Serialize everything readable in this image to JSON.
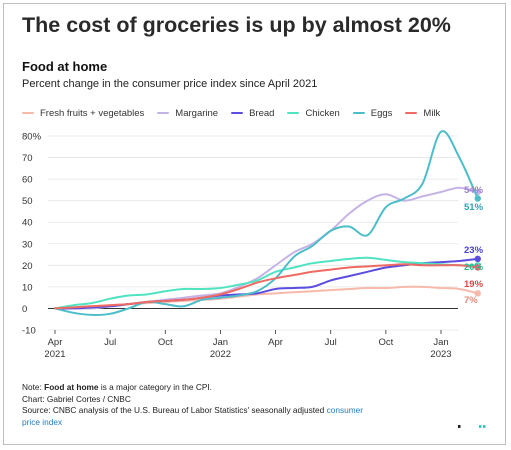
{
  "chart_data": {
    "type": "line",
    "title": "The cost of groceries is up by almost 20%",
    "subtitle": "Food at home",
    "description": "Percent change in the consumer price index since April 2021",
    "ylim": [
      -10,
      80
    ],
    "yticks": [
      -10,
      0,
      10,
      20,
      30,
      40,
      50,
      60,
      70,
      80
    ],
    "ytick_labels": [
      "-10",
      "0",
      "10",
      "20",
      "30",
      "40",
      "50",
      "60",
      "70",
      "80%"
    ],
    "xticks": [
      {
        "month": 0,
        "label": "Apr",
        "year": "2021"
      },
      {
        "month": 3,
        "label": "Jul",
        "year": ""
      },
      {
        "month": 6,
        "label": "Oct",
        "year": ""
      },
      {
        "month": 9,
        "label": "Jan",
        "year": "2022"
      },
      {
        "month": 12,
        "label": "Apr",
        "year": ""
      },
      {
        "month": 15,
        "label": "Jul",
        "year": ""
      },
      {
        "month": 18,
        "label": "Oct",
        "year": ""
      },
      {
        "month": 21,
        "label": "Jan",
        "year": "2023"
      }
    ],
    "x_months": [
      "Apr 2021",
      "May 2021",
      "Jun 2021",
      "Jul 2021",
      "Aug 2021",
      "Sep 2021",
      "Oct 2021",
      "Nov 2021",
      "Dec 2021",
      "Jan 2022",
      "Feb 2022",
      "Mar 2022",
      "Apr 2022",
      "May 2022",
      "Jun 2022",
      "Jul 2022",
      "Aug 2022",
      "Sep 2022",
      "Oct 2022",
      "Nov 2022",
      "Dec 2022",
      "Jan 2023",
      "Feb 2023",
      "Mar 2023"
    ],
    "series": [
      {
        "name": "Fresh fruits + vegetables",
        "color": "#f7b9aa",
        "end_label": "7%",
        "values": [
          0,
          0.5,
          1,
          1.5,
          2,
          2.5,
          3,
          3.5,
          4,
          4.5,
          5.5,
          6.5,
          7,
          7.5,
          8,
          8.5,
          9,
          9.5,
          9.5,
          10,
          10,
          9.5,
          9,
          7
        ]
      },
      {
        "name": "Margarine",
        "color": "#c5b3e6",
        "end_label": "54%",
        "values": [
          0,
          0,
          0,
          1,
          2,
          3,
          4,
          5,
          6,
          7,
          10,
          14,
          20,
          26,
          30,
          36,
          44,
          50,
          53,
          50,
          52,
          54,
          56,
          54
        ]
      },
      {
        "name": "Bread",
        "color": "#5b4de0",
        "end_label": "23%",
        "values": [
          0,
          0,
          0.5,
          1,
          2,
          3,
          3.5,
          4,
          5,
          6,
          6.5,
          7,
          9,
          9.5,
          10,
          13,
          15,
          17,
          19,
          20,
          21,
          21.5,
          22,
          23
        ]
      },
      {
        "name": "Chicken",
        "color": "#4fe3c2",
        "end_label": "20%",
        "values": [
          0,
          1.5,
          2.5,
          4.5,
          6,
          6.5,
          8,
          9,
          9,
          9.5,
          11,
          13,
          17,
          19,
          21,
          22,
          23,
          23.5,
          22.5,
          21.5,
          21,
          20.5,
          20,
          20
        ]
      },
      {
        "name": "Eggs",
        "color": "#4cbdc9",
        "end_label": "51%",
        "values": [
          0,
          -2,
          -3,
          -2.5,
          0,
          3,
          2,
          1,
          4,
          5,
          6,
          8,
          14,
          24,
          29,
          36,
          38,
          34,
          47,
          51,
          58,
          82,
          70,
          51
        ]
      },
      {
        "name": "Milk",
        "color": "#ee6a62",
        "end_label": "19%",
        "values": [
          0,
          0.5,
          1,
          1.5,
          2,
          3,
          3.5,
          4,
          5,
          6.5,
          9,
          12,
          14,
          15.5,
          17,
          18,
          19,
          19.5,
          20,
          20.5,
          20,
          20,
          20,
          19
        ]
      }
    ]
  },
  "footer": {
    "note_prefix": "Note: ",
    "note_bold": "Food at home",
    "note_rest": " is a major category in the CPI.",
    "credit": "Chart: Gabriel Cortes / CNBC",
    "source_text": "Source: CNBC analysis of the U.S. Bureau of Labor Statistics' seasonally adjusted ",
    "source_link_1": "consumer",
    "source_link_2": "price index"
  },
  "colors": {
    "label_margarine": "#9a7fd0",
    "label_bread": "#4a3fd0",
    "label_eggs": "#2ba6b3",
    "label_chicken": "#27b890",
    "label_milk": "#dd4a44",
    "label_fruits": "#e68a78"
  }
}
